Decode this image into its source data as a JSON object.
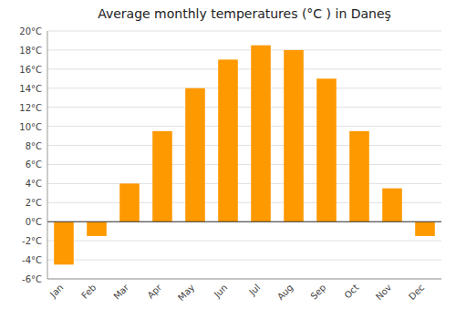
{
  "chart_data": {
    "type": "bar",
    "title": "Average monthly temperatures (°C ) in Daneş",
    "categories": [
      "Jan",
      "Feb",
      "Mar",
      "Apr",
      "May",
      "Jun",
      "Jul",
      "Aug",
      "Sep",
      "Oct",
      "Nov",
      "Dec"
    ],
    "values": [
      -4.5,
      -1.5,
      4.0,
      9.5,
      14.0,
      17.0,
      18.5,
      18.0,
      15.0,
      9.5,
      3.5,
      -1.5
    ],
    "color": "#ff9900",
    "ylim": [
      -6,
      20
    ],
    "yticks": [
      {
        "value": -6,
        "label": "-6°C"
      },
      {
        "value": -4,
        "label": "-4°C"
      },
      {
        "value": -2,
        "label": "-2°C"
      },
      {
        "value": 0,
        "label": "0°C"
      },
      {
        "value": 2,
        "label": "2°C"
      },
      {
        "value": 4,
        "label": "4°C"
      },
      {
        "value": 6,
        "label": "6°C"
      },
      {
        "value": 8,
        "label": "8°C"
      },
      {
        "value": 10,
        "label": "10°C"
      },
      {
        "value": 12,
        "label": "12°C"
      },
      {
        "value": 14,
        "label": "14°C"
      },
      {
        "value": 16,
        "label": "16°C"
      },
      {
        "value": 18,
        "label": "18°C"
      },
      {
        "value": 20,
        "label": "20°C"
      }
    ],
    "grid": true
  }
}
